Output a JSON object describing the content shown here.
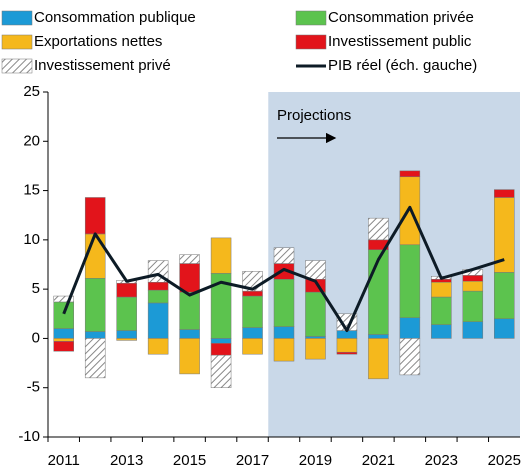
{
  "chart_data": {
    "type": "bar",
    "annotation": "Projections",
    "categories": [
      "2011",
      null,
      "2013",
      null,
      "2015",
      null,
      "2017",
      null,
      "2019",
      null,
      "2021",
      null,
      "2023",
      null,
      "2025"
    ],
    "series": [
      {
        "name": "Consommation publique",
        "color": "#1c9ad6",
        "values": [
          1.0,
          0.7,
          0.8,
          3.6,
          0.9,
          -0.5,
          1.1,
          1.2,
          0.2,
          0.8,
          0.4,
          2.1,
          1.4,
          1.7,
          2.0
        ]
      },
      {
        "name": "Consommation privée",
        "color": "#5cc34e",
        "values": [
          2.7,
          5.4,
          3.4,
          1.3,
          3.8,
          6.6,
          3.2,
          4.8,
          4.5,
          0,
          8.6,
          7.4,
          2.8,
          3.1,
          4.7
        ]
      },
      {
        "name": "Exportations nettes",
        "color": "#f5b81c",
        "values": [
          -0.3,
          4.5,
          -0.2,
          -1.6,
          -3.6,
          3.6,
          -1.6,
          -2.3,
          -2.1,
          -1.4,
          -4.1,
          6.9,
          1.5,
          1.0,
          7.6
        ]
      },
      {
        "name": "Investissement public",
        "color": "#e2141b",
        "values": [
          -1.0,
          3.7,
          1.4,
          0.8,
          2.9,
          -1.2,
          0.5,
          1.6,
          1.3,
          -0.2,
          1.0,
          0.6,
          0.3,
          0.6,
          0.8
        ]
      },
      {
        "name": "Investissement privé",
        "color": "hatch",
        "values": [
          0.6,
          -4.0,
          0.3,
          2.2,
          0.9,
          -3.3,
          2.0,
          1.6,
          1.9,
          1.7,
          2.2,
          -3.7,
          0.3,
          0.6,
          0
        ]
      },
      {
        "name": "PIB réel (éch. gauche)",
        "color": "#0d1b26",
        "line": true,
        "values": [
          2.5,
          10.6,
          5.8,
          6.5,
          4.4,
          5.7,
          5.0,
          7.0,
          5.8,
          0.8,
          8.0,
          13.3,
          6.1,
          7.0,
          8.0
        ]
      }
    ],
    "ylim": [
      -10,
      25
    ],
    "yticks": [
      -10,
      -5,
      0,
      5,
      10,
      15,
      20,
      25
    ]
  }
}
